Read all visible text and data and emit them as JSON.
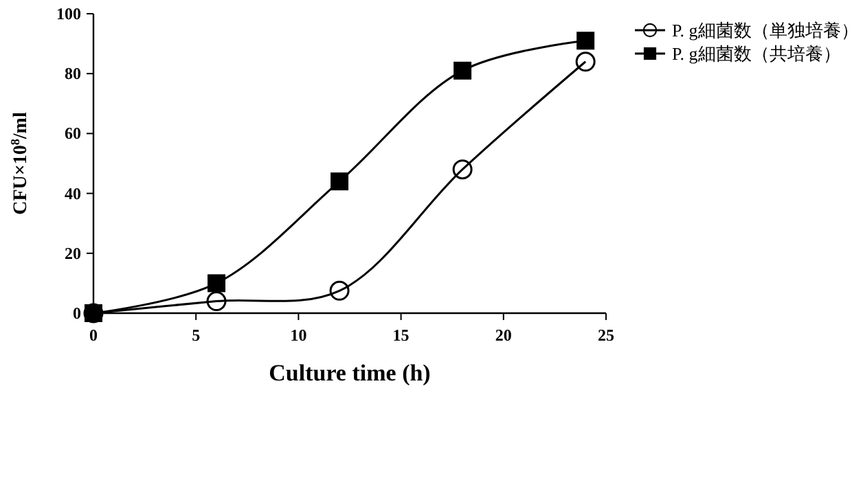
{
  "chart_data": {
    "type": "line",
    "xlabel": "Culture time (h)",
    "ylabel": "CFU×10$^{8}$/ml",
    "x": [
      0,
      6,
      12,
      18,
      24
    ],
    "series": [
      {
        "name": "P. g細菌数（単独培養）",
        "color": "#000000",
        "marker": "circle",
        "values": [
          0,
          4,
          7.5,
          48,
          84
        ]
      },
      {
        "name": "P. g細菌数（共培養）",
        "color": "#000000",
        "marker": "square",
        "values": [
          0,
          10,
          44,
          81,
          91
        ]
      }
    ],
    "xlim": [
      0,
      25
    ],
    "xticks": [
      0,
      5,
      10,
      15,
      20,
      25
    ],
    "ylim": [
      0,
      100
    ],
    "yticks": [
      0,
      20,
      40,
      60,
      80,
      100
    ],
    "grid": false,
    "legend": "top right",
    "line_style": "solid"
  }
}
